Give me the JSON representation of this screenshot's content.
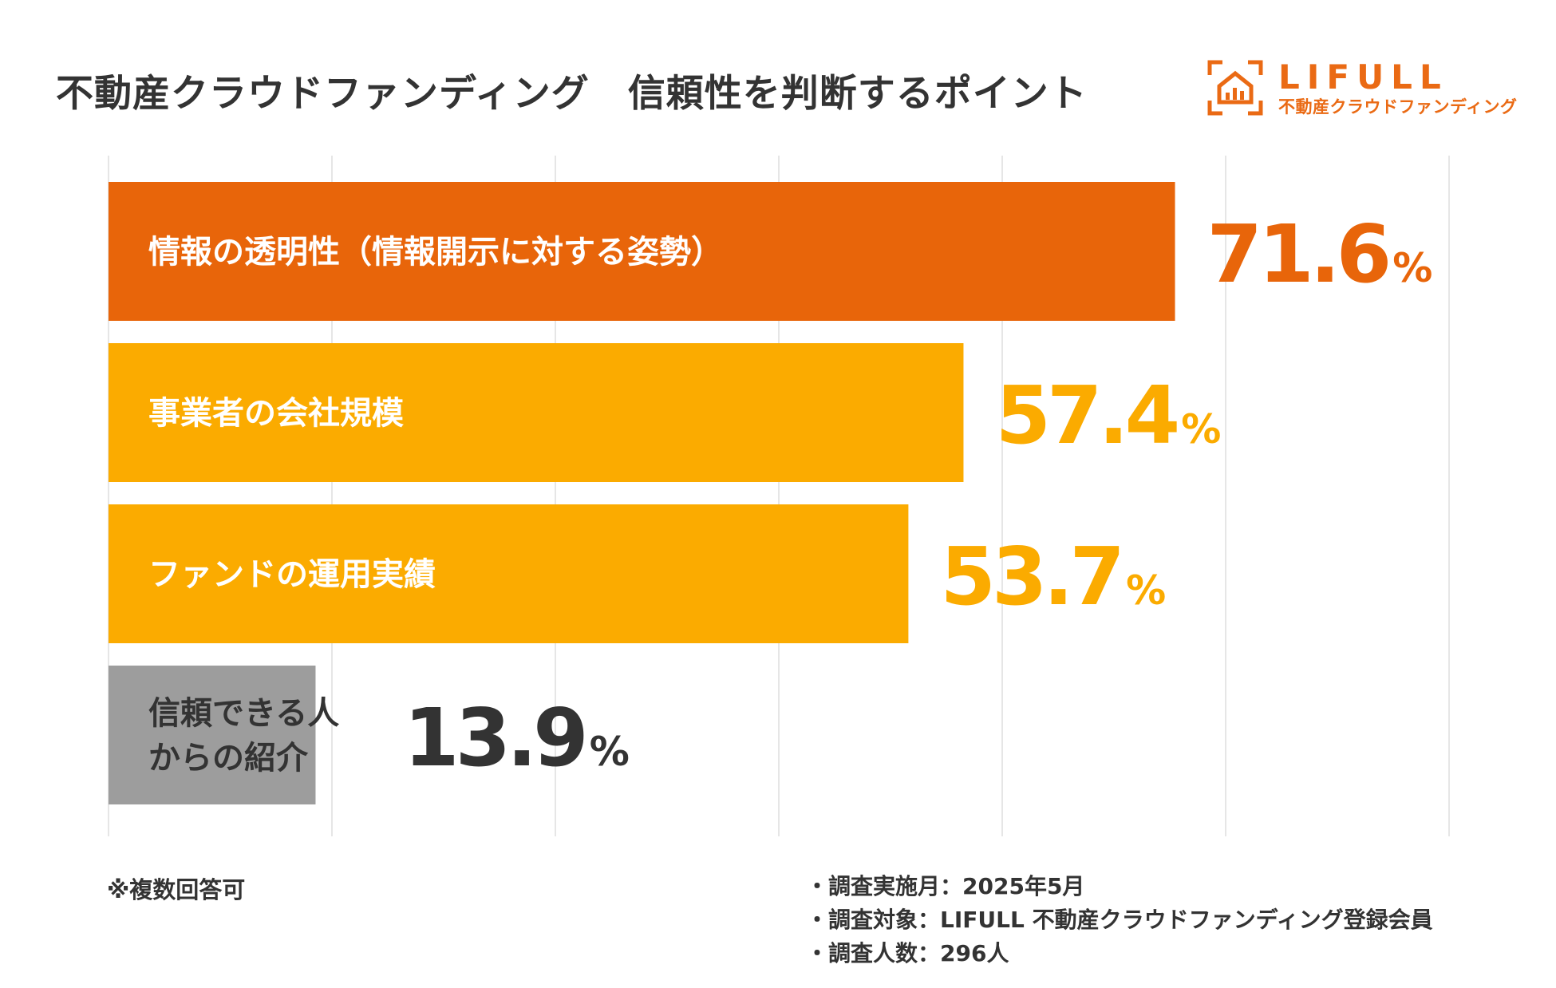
{
  "title": "不動産クラウドファンディング　信頼性を判断するポイント",
  "logo": {
    "name": "LIFULL",
    "subtitle": "不動産クラウドファンディング",
    "icon": "house-chart-icon",
    "color": "#ea6a14"
  },
  "chart_data": {
    "type": "bar",
    "orientation": "horizontal",
    "categories": [
      "情報の透明性（情報開示に対する姿勢）",
      "事業者の会社規模",
      "ファンドの運用実績",
      "信頼できる人\nからの紹介"
    ],
    "values": [
      71.6,
      57.4,
      53.7,
      13.9
    ],
    "value_suffix": "%",
    "bar_colors": [
      "#e8650a",
      "#fbab00",
      "#fbab00",
      "#9d9d9d"
    ],
    "value_colors": [
      "#e8650a",
      "#fbab00",
      "#fbab00",
      "#333333"
    ],
    "xlim": [
      0,
      90
    ],
    "gridlines": 7,
    "grid": true
  },
  "footnote": "※複数回答可",
  "survey": [
    "調査実施月：2025年5月",
    "調査対象：LIFULL 不動産クラウドファンディング登録会員",
    "調査人数：296人"
  ]
}
